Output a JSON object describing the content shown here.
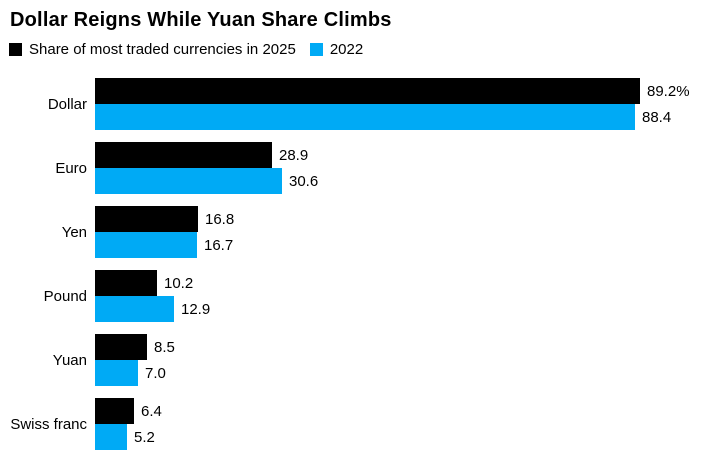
{
  "chart_data": {
    "type": "bar",
    "orientation": "horizontal",
    "title": "Dollar Reigns While Yuan Share Climbs",
    "categories": [
      "Dollar",
      "Euro",
      "Yen",
      "Pound",
      "Yuan",
      "Swiss franc"
    ],
    "series": [
      {
        "name": "Share of most traded currencies in 2025",
        "color": "#000000",
        "values": [
          89.2,
          28.9,
          16.8,
          10.2,
          8.5,
          6.4
        ],
        "value_labels": [
          "89.2%",
          "28.9",
          "16.8",
          "10.2",
          "8.5",
          "6.4"
        ]
      },
      {
        "name": "2022",
        "color": "#00aaf5",
        "values": [
          88.4,
          30.6,
          16.7,
          12.9,
          7.0,
          5.2
        ],
        "value_labels": [
          "88.4",
          "30.6",
          "16.7",
          "12.9",
          "7.0",
          "5.2"
        ]
      }
    ],
    "xlim": [
      0,
      89.2
    ],
    "grid": false,
    "axis_ticks_visible": false,
    "legend_position": "top-left",
    "value_labels_visible": true
  }
}
